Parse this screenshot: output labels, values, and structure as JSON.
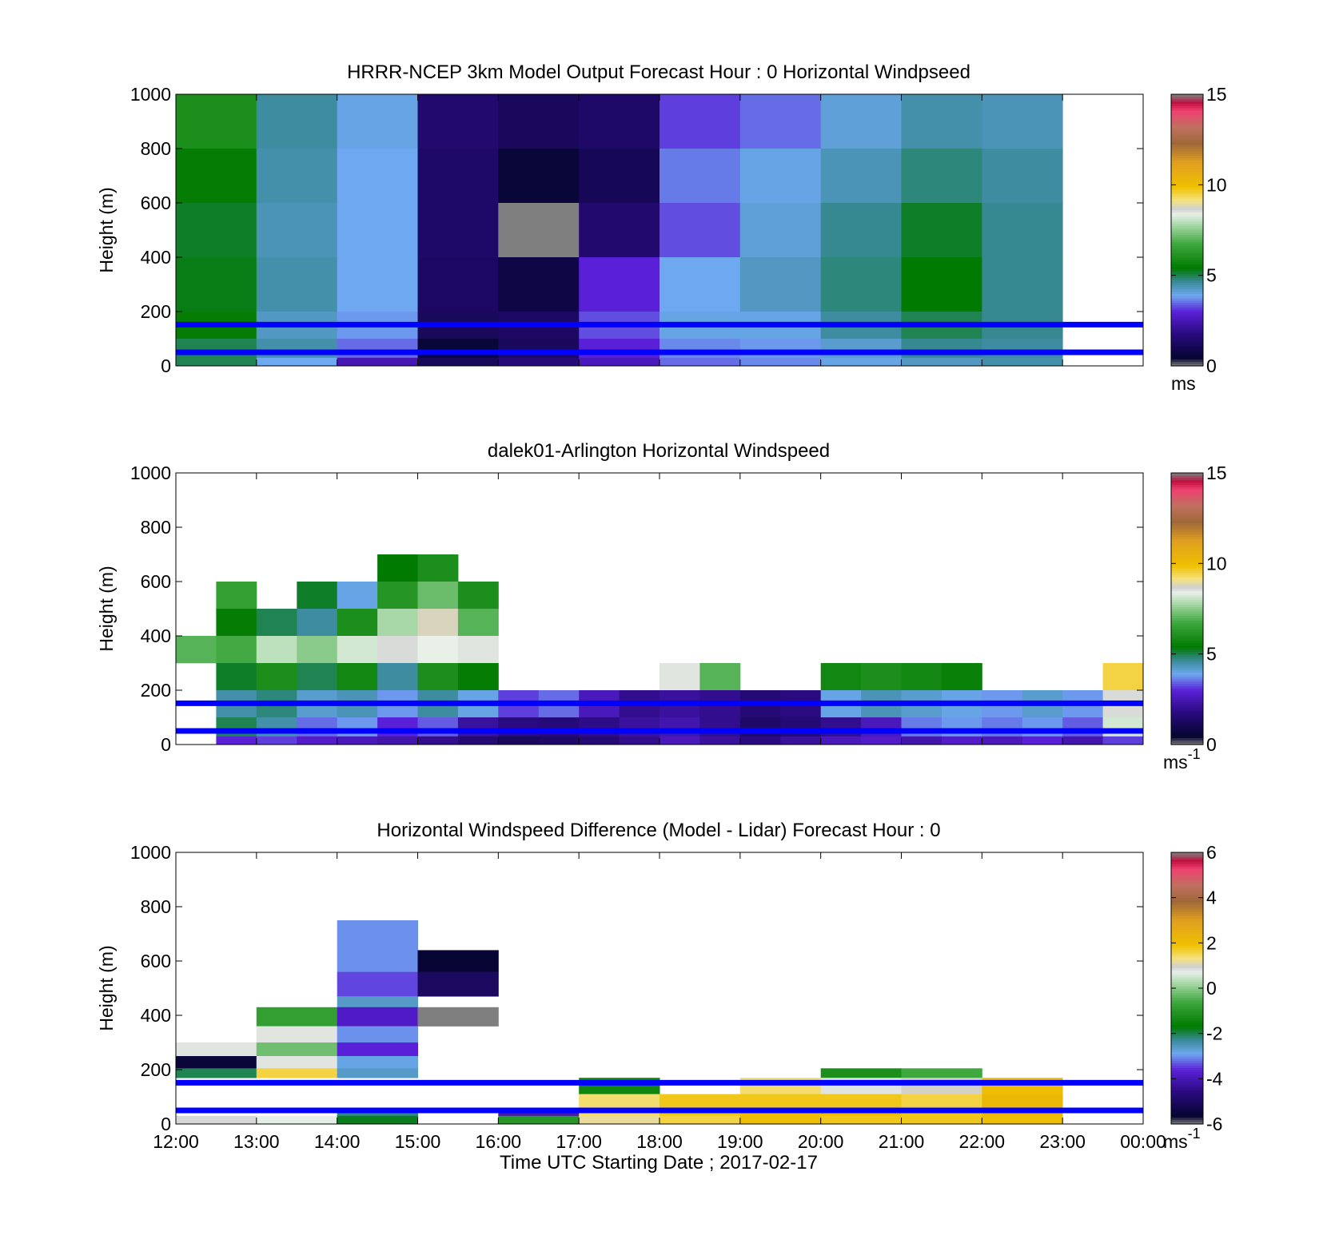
{
  "figure": {
    "xlabel": "Time UTC  Starting Date ; 2017-02-17",
    "x_ticks": [
      "12:00",
      "13:00",
      "14:00",
      "15:00",
      "16:00",
      "17:00",
      "18:00",
      "19:00",
      "20:00",
      "21:00",
      "22:00",
      "23:00",
      "00:00"
    ],
    "y_ticks": [
      "0",
      "200",
      "400",
      "600",
      "800",
      "1000"
    ],
    "ylabel": "Height (m)",
    "reference_lines_m": [
      50,
      152
    ],
    "reference_line_color": "#0000ff"
  },
  "colormap": [
    {
      "v": 0.0,
      "c": "#7f7f7f"
    },
    {
      "v": 0.03,
      "c": "#050530"
    },
    {
      "v": 0.12,
      "c": "#2a0a80"
    },
    {
      "v": 0.2,
      "c": "#5a20d8"
    },
    {
      "v": 0.26,
      "c": "#6ea8f0"
    },
    {
      "v": 0.31,
      "c": "#3a8a9a"
    },
    {
      "v": 0.36,
      "c": "#007a00"
    },
    {
      "v": 0.45,
      "c": "#3ea83e"
    },
    {
      "v": 0.52,
      "c": "#a8d8a8"
    },
    {
      "v": 0.56,
      "c": "#e8f0e8"
    },
    {
      "v": 0.58,
      "c": "#d0d0d0"
    },
    {
      "v": 0.61,
      "c": "#f5e280"
    },
    {
      "v": 0.66,
      "c": "#f0c000"
    },
    {
      "v": 0.75,
      "c": "#e0a020"
    },
    {
      "v": 0.82,
      "c": "#a06838"
    },
    {
      "v": 0.88,
      "c": "#c07060"
    },
    {
      "v": 0.94,
      "c": "#f04070"
    },
    {
      "v": 0.97,
      "c": "#c01040"
    },
    {
      "v": 1.0,
      "c": "#7f7f7f"
    }
  ],
  "chart_data": [
    {
      "type": "heatmap",
      "title": "HRRR-NCEP 3km Model Output   Forecast Hour : 0 Horizontal Windpseed",
      "xlabel": "",
      "ylabel": "Height (m)",
      "colorbar": {
        "min": 0,
        "max": 15,
        "ticks": [
          "0",
          "5",
          "10",
          "15"
        ],
        "unit": "ms",
        "unit_sup": ""
      },
      "ylim": [
        0,
        1000
      ],
      "x": [
        "12:00",
        "13:00",
        "14:00",
        "15:00",
        "16:00",
        "17:00",
        "18:00",
        "19:00",
        "20:00",
        "21:00",
        "22:00",
        "23:00"
      ],
      "layers_m": [
        1000,
        800,
        600,
        400,
        200,
        100,
        30
      ],
      "values": [
        [
          6.0,
          5.5,
          5.2,
          5.3,
          5.5,
          5.0,
          5.0
        ],
        [
          4.6,
          4.5,
          4.4,
          4.5,
          4.3,
          4.5,
          3.9
        ],
        [
          4.0,
          3.9,
          3.9,
          3.9,
          3.8,
          3.5,
          2.5
        ],
        [
          1.5,
          1.4,
          1.4,
          1.3,
          1.2,
          0.6,
          1.2
        ],
        [
          1.2,
          0.6,
          0.0,
          0.8,
          1.3,
          1.2,
          1.7
        ],
        [
          1.4,
          1.1,
          1.5,
          3.0,
          3.3,
          3.0,
          2.6
        ],
        [
          3.2,
          3.6,
          3.3,
          3.9,
          4.0,
          3.7,
          3.5
        ],
        [
          3.5,
          4.0,
          4.1,
          4.3,
          4.0,
          3.8,
          3.7
        ],
        [
          4.1,
          4.4,
          4.7,
          4.8,
          4.6,
          4.2,
          4.0
        ],
        [
          4.5,
          4.8,
          5.2,
          5.4,
          5.0,
          4.7,
          4.3
        ],
        [
          4.4,
          4.6,
          4.7,
          4.7,
          4.7,
          4.6,
          4.5
        ],
        [
          null,
          null,
          null,
          null,
          null,
          null,
          null
        ]
      ]
    },
    {
      "type": "heatmap",
      "title": "dalek01-Arlington  Horizontal Windspeed",
      "xlabel": "",
      "ylabel": "Height (m)",
      "colorbar": {
        "min": 0,
        "max": 15,
        "ticks": [
          "0",
          "5",
          "10",
          "15"
        ],
        "unit": "ms",
        "unit_sup": "-1"
      },
      "ylim": [
        0,
        1000
      ],
      "x": [
        "12:00",
        "12:30",
        "13:00",
        "13:30",
        "14:00",
        "14:30",
        "15:00",
        "15:30",
        "16:00",
        "16:30",
        "17:00",
        "17:30",
        "18:00",
        "18:30",
        "19:00",
        "19:30",
        "20:00",
        "20:30",
        "21:00",
        "21:30",
        "22:00",
        "22:30",
        "23:00",
        "23:30"
      ],
      "layers_m": [
        800,
        700,
        600,
        500,
        400,
        300,
        200,
        100,
        30
      ],
      "values": [
        [
          null,
          null,
          null,
          null,
          7.0,
          null,
          null,
          null,
          null
        ],
        [
          null,
          null,
          6.5,
          5.5,
          6.8,
          5.2,
          4.5,
          5.0,
          3.0
        ],
        [
          null,
          null,
          null,
          5.0,
          8.0,
          6.0,
          4.8,
          4.5,
          3.2
        ],
        [
          null,
          null,
          5.2,
          4.6,
          7.5,
          5.0,
          4.2,
          3.5,
          2.8
        ],
        [
          null,
          null,
          4.0,
          6.0,
          8.2,
          5.8,
          4.4,
          3.8,
          2.6
        ],
        [
          null,
          5.4,
          6.2,
          7.8,
          8.6,
          4.6,
          3.8,
          3.0,
          2.4
        ],
        [
          null,
          6.0,
          7.2,
          8.8,
          8.4,
          6.0,
          4.6,
          3.4,
          2.0
        ],
        [
          null,
          null,
          6.0,
          7.0,
          8.5,
          5.5,
          4.0,
          2.2,
          1.6
        ],
        [
          null,
          null,
          null,
          null,
          null,
          null,
          3.2,
          1.8,
          1.2
        ],
        [
          null,
          null,
          null,
          null,
          null,
          null,
          3.5,
          1.7,
          1.4
        ],
        [
          null,
          null,
          null,
          null,
          null,
          null,
          2.6,
          1.9,
          1.6
        ],
        [
          null,
          null,
          null,
          null,
          null,
          null,
          2.0,
          2.2,
          2.0
        ],
        [
          null,
          null,
          null,
          null,
          null,
          8.5,
          2.2,
          2.4,
          2.6
        ],
        [
          null,
          null,
          null,
          null,
          null,
          7.0,
          2.0,
          2.0,
          2.2
        ],
        [
          null,
          null,
          null,
          null,
          null,
          null,
          1.6,
          1.4,
          1.8
        ],
        [
          null,
          null,
          null,
          null,
          null,
          null,
          1.8,
          1.6,
          2.2
        ],
        [
          null,
          null,
          null,
          null,
          null,
          5.8,
          4.0,
          2.0,
          2.6
        ],
        [
          null,
          null,
          null,
          null,
          null,
          6.0,
          4.4,
          2.6,
          2.8
        ],
        [
          null,
          null,
          null,
          null,
          null,
          5.8,
          4.2,
          3.6,
          2.4
        ],
        [
          null,
          null,
          null,
          null,
          null,
          5.6,
          4.0,
          3.8,
          2.8
        ],
        [
          null,
          null,
          null,
          null,
          null,
          null,
          3.8,
          3.6,
          2.6
        ],
        [
          null,
          null,
          null,
          null,
          null,
          null,
          4.2,
          3.8,
          3.0
        ],
        [
          null,
          null,
          null,
          null,
          null,
          null,
          3.8,
          3.4,
          2.4
        ],
        [
          null,
          null,
          null,
          null,
          null,
          9.5,
          8.6,
          8.2,
          3.2
        ]
      ]
    },
    {
      "type": "heatmap",
      "title": "Horizontal Windspeed Difference (Model - Lidar) Forecast Hour : 0",
      "xlabel": "Time UTC  Starting Date ; 2017-02-17",
      "ylabel": "Height (m)",
      "colorbar": {
        "min": -6,
        "max": 6,
        "ticks": [
          "-6",
          "-4",
          "-2",
          "0",
          "2",
          "4",
          "6"
        ],
        "unit": "ms",
        "unit_sup": "-1"
      },
      "ylim": [
        0,
        1000
      ],
      "x": [
        "12:00",
        "13:00",
        "14:00",
        "15:00",
        "16:00",
        "17:00",
        "18:00",
        "19:00",
        "20:00",
        "21:00",
        "22:00",
        "23:00"
      ],
      "layers_m": [
        750,
        640,
        560,
        470,
        430,
        360,
        300,
        250,
        205,
        170,
        110,
        60,
        30
      ],
      "values": [
        [
          null,
          null,
          null,
          null,
          null,
          null,
          0.8,
          -5.5,
          -2.0,
          null,
          null,
          null,
          0.9
        ],
        [
          null,
          null,
          null,
          null,
          -0.8,
          0.8,
          -0.2,
          0.8,
          1.6,
          null,
          null,
          null,
          0.7
        ],
        [
          -3.0,
          -3.0,
          -3.4,
          -2.6,
          -3.8,
          -3.0,
          -3.6,
          -2.8,
          -2.6,
          null,
          null,
          -2.2,
          -1.8
        ],
        [
          null,
          -5.6,
          -5.0,
          null,
          -6.0,
          null,
          null,
          null,
          null,
          null,
          null,
          null,
          null
        ],
        [
          null,
          null,
          null,
          null,
          null,
          null,
          null,
          null,
          null,
          null,
          null,
          -4.0,
          -1.0
        ],
        [
          null,
          null,
          null,
          null,
          null,
          null,
          null,
          null,
          null,
          -1.4,
          1.4,
          1.4,
          1.2
        ],
        [
          null,
          null,
          null,
          null,
          null,
          null,
          null,
          null,
          null,
          null,
          1.8,
          1.8,
          1.6
        ],
        [
          null,
          null,
          null,
          null,
          null,
          null,
          null,
          null,
          null,
          1.4,
          1.8,
          2.0,
          2.0
        ],
        [
          null,
          null,
          null,
          null,
          null,
          null,
          null,
          null,
          -1.2,
          0.8,
          1.8,
          2.0,
          1.8
        ],
        [
          null,
          null,
          null,
          null,
          null,
          null,
          null,
          null,
          -0.6,
          1.0,
          1.6,
          1.8,
          1.8
        ],
        [
          null,
          null,
          null,
          null,
          null,
          null,
          null,
          null,
          null,
          2.0,
          2.2,
          2.2,
          2.0
        ],
        [
          null,
          null,
          null,
          null,
          null,
          null,
          null,
          null,
          null,
          null,
          null,
          null,
          null
        ]
      ]
    }
  ]
}
